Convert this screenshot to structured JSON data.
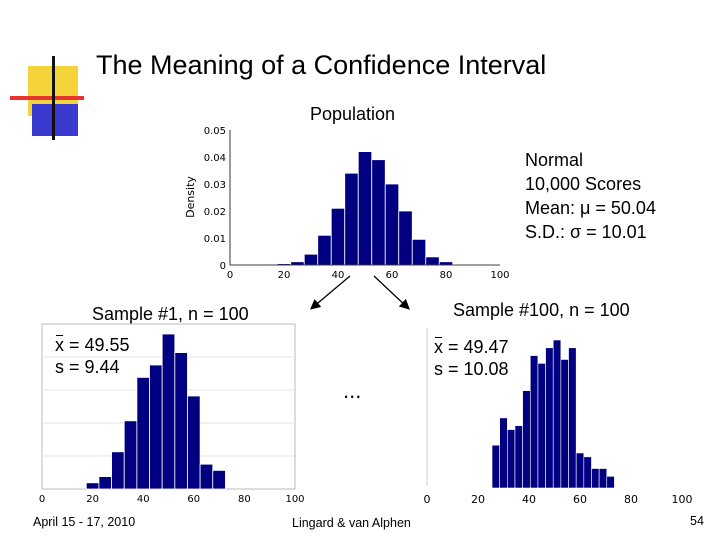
{
  "slide": {
    "title": "The Meaning of a Confidence Interval",
    "population_label": "Population",
    "population_stats": [
      "Normal",
      "10,000 Scores",
      "Mean: μ = 50.04",
      "S.D.: σ = 10.01"
    ],
    "sample1_label": "Sample #1, n = 100",
    "sample1_mean_symbol": "x",
    "sample1_mean_rest": " = 49.55",
    "sample1_sd": "s = 9.44",
    "sample100_label": "Sample #100, n = 100",
    "sample100_mean_symbol": "x",
    "sample100_mean_rest": " = 49.47",
    "sample100_sd": "s = 10.08",
    "ellipsis": "...",
    "footer_left": "April 15 - 17, 2010",
    "footer_center": "Lingard & van Alphen",
    "footer_right": "54",
    "bar_color": "#000080"
  },
  "chart_data": [
    {
      "type": "bar",
      "ylabel": "Density",
      "xlim": [
        0,
        100
      ],
      "ylim": [
        0,
        0.05
      ],
      "xticks": [
        "0",
        "20",
        "40",
        "60",
        "80",
        "100"
      ],
      "yticks": [
        "0",
        "0.01",
        "0.02",
        "0.03",
        "0.04",
        "0.05"
      ],
      "bins": [
        15,
        20,
        25,
        30,
        35,
        40,
        45,
        50,
        55,
        60,
        65,
        70,
        75,
        80,
        85
      ],
      "values": [
        0.0002,
        0.0005,
        0.0012,
        0.004,
        0.011,
        0.021,
        0.034,
        0.042,
        0.039,
        0.03,
        0.02,
        0.0095,
        0.003,
        0.0012,
        0.0003
      ]
    },
    {
      "type": "bar",
      "xlim": [
        0,
        100
      ],
      "xticks": [
        "0",
        "20",
        "40",
        "60",
        "80",
        "100"
      ],
      "bins": [
        20,
        25,
        30,
        35,
        40,
        45,
        50,
        55,
        60,
        65,
        70
      ],
      "values": [
        1,
        2,
        6,
        11,
        18,
        20,
        25,
        22,
        15,
        4,
        3
      ]
    },
    {
      "type": "bar",
      "xlim": [
        0,
        100
      ],
      "xticks": [
        "0",
        "20",
        "40",
        "60",
        "80",
        "100"
      ],
      "bins": [
        27,
        30,
        33,
        36,
        39,
        42,
        45,
        48,
        51,
        54,
        57,
        60,
        63,
        66,
        69,
        72
      ],
      "values": [
        11,
        18,
        15,
        16,
        25,
        34,
        32,
        36,
        38,
        33,
        36,
        9,
        8,
        5,
        5,
        3
      ]
    }
  ]
}
